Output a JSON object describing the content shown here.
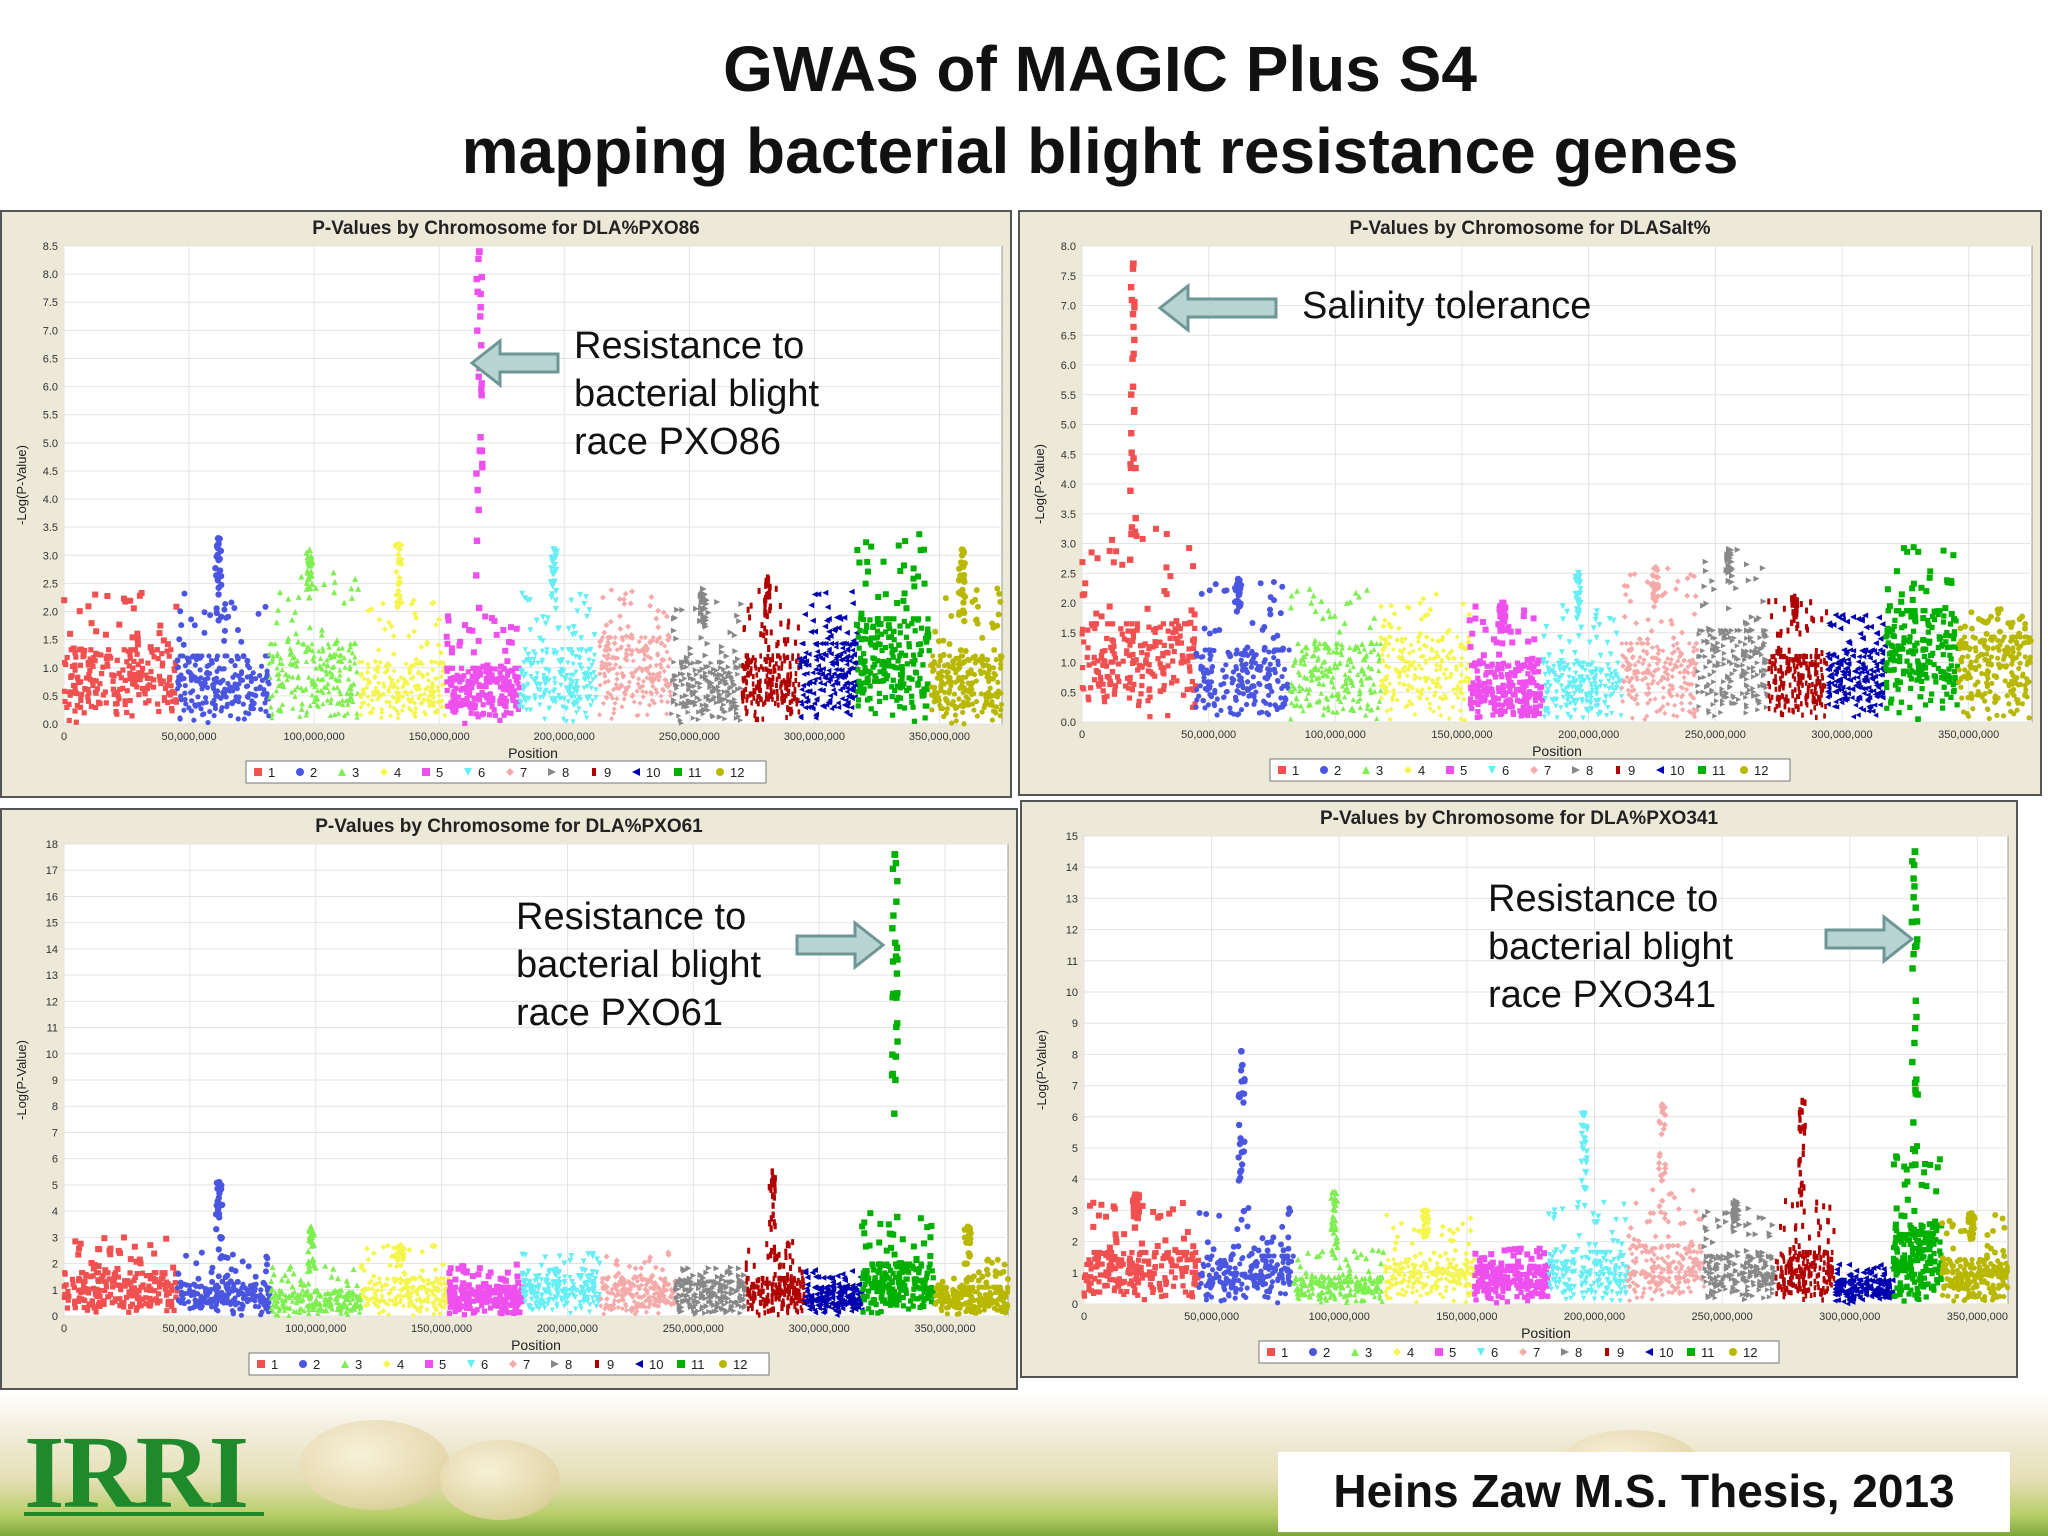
{
  "slide": {
    "title_line1": "GWAS of MAGIC Plus S4",
    "title_line2": "mapping bacterial blight resistance genes",
    "citation": "Heins Zaw M.S. Thesis, 2013",
    "logo": "IRRI"
  },
  "annotations": {
    "pxo86": "Resistance to\nbacterial blight\nrace PXO86",
    "salt": "Salinity tolerance",
    "pxo61": "Resistance to\nbacterial blight\nrace PXO61",
    "pxo341": "Resistance to\nbacterial blight\nrace PXO341"
  },
  "chromosome_legend": {
    "labels": [
      "1",
      "2",
      "3",
      "4",
      "5",
      "6",
      "7",
      "8",
      "9",
      "10",
      "11",
      "12"
    ],
    "colors": [
      "#f05050",
      "#4a55e0",
      "#7fee50",
      "#f5f550",
      "#ee50ee",
      "#66eef5",
      "#f5aaaa",
      "#888888",
      "#b00000",
      "#0000b0",
      "#00b000",
      "#b8b800"
    ],
    "markers": [
      "square",
      "circle",
      "triangle-up",
      "diamond",
      "square",
      "triangle-down",
      "diamond",
      "triangle-right",
      "rect",
      "triangle-left",
      "square",
      "circle"
    ]
  },
  "chart_data": [
    {
      "type": "scatter",
      "title": "P-Values by Chromosome for DLA%PXO86",
      "xlabel": "Position",
      "ylabel": "-Log(P-Value)",
      "xlim": [
        0,
        375000000
      ],
      "ylim": [
        0,
        8.5
      ],
      "yticks": [
        "0.0",
        "0.5",
        "1.0",
        "1.5",
        "2.0",
        "2.5",
        "3.0",
        "3.5",
        "4.0",
        "4.5",
        "5.0",
        "5.5",
        "6.0",
        "6.5",
        "7.0",
        "7.5",
        "8.0",
        "8.5"
      ],
      "xticks": [
        "0",
        "50,000,000",
        "100,000,000",
        "150,000,000",
        "200,000,000",
        "250,000,000",
        "300,000,000",
        "350,000,000"
      ],
      "grid": true,
      "legend": "bottom",
      "chromosomes": [
        {
          "name": "1",
          "start": 0,
          "end": 45000000,
          "base": 1.2,
          "peak": 2.4
        },
        {
          "name": "2",
          "start": 45000000,
          "end": 82000000,
          "base": 1.1,
          "peak": 3.3
        },
        {
          "name": "3",
          "start": 82000000,
          "end": 118000000,
          "base": 1.3,
          "peak": 3.1
        },
        {
          "name": "4",
          "start": 118000000,
          "end": 153000000,
          "base": 1.0,
          "peak": 3.2
        },
        {
          "name": "5",
          "start": 153000000,
          "end": 182000000,
          "base": 0.9,
          "peak": 8.4
        },
        {
          "name": "6",
          "start": 182000000,
          "end": 213000000,
          "base": 1.2,
          "peak": 3.1
        },
        {
          "name": "7",
          "start": 213000000,
          "end": 243000000,
          "base": 1.4,
          "peak": 2.5
        },
        {
          "name": "8",
          "start": 243000000,
          "end": 271000000,
          "base": 1.0,
          "peak": 2.4
        },
        {
          "name": "9",
          "start": 271000000,
          "end": 294000000,
          "base": 1.1,
          "peak": 2.6
        },
        {
          "name": "10",
          "start": 294000000,
          "end": 317000000,
          "base": 1.3,
          "peak": 2.4
        },
        {
          "name": "11",
          "start": 317000000,
          "end": 346000000,
          "base": 1.7,
          "peak": 3.4
        },
        {
          "name": "12",
          "start": 346000000,
          "end": 375000000,
          "base": 1.1,
          "peak": 3.1
        }
      ]
    },
    {
      "type": "scatter",
      "title": "P-Values by Chromosome for DLASalt%",
      "xlabel": "Position",
      "ylabel": "-Log(P-Value)",
      "xlim": [
        0,
        375000000
      ],
      "ylim": [
        0,
        8.0
      ],
      "yticks": [
        "0.0",
        "0.5",
        "1.0",
        "1.5",
        "2.0",
        "2.5",
        "3.0",
        "3.5",
        "4.0",
        "4.5",
        "5.0",
        "5.5",
        "6.0",
        "6.5",
        "7.0",
        "7.5",
        "8.0"
      ],
      "xticks": [
        "0",
        "50,000,000",
        "100,000,000",
        "150,000,000",
        "200,000,000",
        "250,000,000",
        "300,000,000",
        "350,000,000"
      ],
      "grid": true,
      "legend": "bottom",
      "chromosomes": [
        {
          "name": "1",
          "start": 0,
          "end": 45000000,
          "base": 1.5,
          "peak": 7.7
        },
        {
          "name": "2",
          "start": 45000000,
          "end": 82000000,
          "base": 1.1,
          "peak": 2.4
        },
        {
          "name": "3",
          "start": 82000000,
          "end": 118000000,
          "base": 1.2,
          "peak": 2.3
        },
        {
          "name": "4",
          "start": 118000000,
          "end": 153000000,
          "base": 1.3,
          "peak": 2.2
        },
        {
          "name": "5",
          "start": 153000000,
          "end": 182000000,
          "base": 0.9,
          "peak": 2.0
        },
        {
          "name": "6",
          "start": 182000000,
          "end": 213000000,
          "base": 0.9,
          "peak": 2.5
        },
        {
          "name": "7",
          "start": 213000000,
          "end": 243000000,
          "base": 1.2,
          "peak": 2.6
        },
        {
          "name": "8",
          "start": 243000000,
          "end": 271000000,
          "base": 1.4,
          "peak": 2.9
        },
        {
          "name": "9",
          "start": 271000000,
          "end": 294000000,
          "base": 1.0,
          "peak": 2.1
        },
        {
          "name": "10",
          "start": 294000000,
          "end": 317000000,
          "base": 1.1,
          "peak": 1.8
        },
        {
          "name": "11",
          "start": 317000000,
          "end": 346000000,
          "base": 1.7,
          "peak": 3.0
        },
        {
          "name": "12",
          "start": 346000000,
          "end": 375000000,
          "base": 1.3,
          "peak": 1.9
        }
      ]
    },
    {
      "type": "scatter",
      "title": "P-Values by Chromosome for DLA%PXO61",
      "xlabel": "Position",
      "ylabel": "-Log(P-Value)",
      "xlim": [
        0,
        375000000
      ],
      "ylim": [
        0,
        18
      ],
      "yticks": [
        "0",
        "1",
        "2",
        "3",
        "4",
        "5",
        "6",
        "7",
        "8",
        "9",
        "10",
        "11",
        "12",
        "13",
        "14",
        "15",
        "16",
        "17",
        "18"
      ],
      "xticks": [
        "0",
        "50,000,000",
        "100,000,000",
        "150,000,000",
        "200,000,000",
        "250,000,000",
        "300,000,000",
        "350,000,000"
      ],
      "grid": true,
      "legend": "bottom",
      "chromosomes": [
        {
          "name": "1",
          "start": 0,
          "end": 45000000,
          "base": 1.5,
          "peak": 3.0
        },
        {
          "name": "2",
          "start": 45000000,
          "end": 82000000,
          "base": 1.1,
          "peak": 5.1
        },
        {
          "name": "3",
          "start": 82000000,
          "end": 118000000,
          "base": 0.9,
          "peak": 3.4
        },
        {
          "name": "4",
          "start": 118000000,
          "end": 153000000,
          "base": 1.3,
          "peak": 2.7
        },
        {
          "name": "5",
          "start": 153000000,
          "end": 182000000,
          "base": 1.0,
          "peak": 2.0
        },
        {
          "name": "6",
          "start": 182000000,
          "end": 213000000,
          "base": 1.4,
          "peak": 2.4
        },
        {
          "name": "7",
          "start": 213000000,
          "end": 243000000,
          "base": 1.3,
          "peak": 2.5
        },
        {
          "name": "8",
          "start": 243000000,
          "end": 271000000,
          "base": 1.2,
          "peak": 1.9
        },
        {
          "name": "9",
          "start": 271000000,
          "end": 294000000,
          "base": 1.3,
          "peak": 5.5
        },
        {
          "name": "10",
          "start": 294000000,
          "end": 317000000,
          "base": 1.0,
          "peak": 1.8
        },
        {
          "name": "11",
          "start": 317000000,
          "end": 346000000,
          "base": 1.8,
          "peak": 17.6
        },
        {
          "name": "12",
          "start": 346000000,
          "end": 375000000,
          "base": 1.0,
          "peak": 3.4
        }
      ]
    },
    {
      "type": "scatter",
      "title": "P-Values by Chromosome for DLA%PXO341",
      "xlabel": "Position",
      "ylabel": "-Log(P-Value)",
      "xlim": [
        0,
        362000000
      ],
      "ylim": [
        0,
        15
      ],
      "yticks": [
        "0",
        "1",
        "2",
        "3",
        "4",
        "5",
        "6",
        "7",
        "8",
        "9",
        "10",
        "11",
        "12",
        "13",
        "14",
        "15"
      ],
      "xticks": [
        "0",
        "50,000,000",
        "100,000,000",
        "150,000,000",
        "200,000,000",
        "250,000,000",
        "300,000,000",
        "350,000,000"
      ],
      "grid": true,
      "legend": "bottom",
      "chromosomes": [
        {
          "name": "1",
          "start": 0,
          "end": 45000000,
          "base": 1.5,
          "peak": 3.5
        },
        {
          "name": "2",
          "start": 45000000,
          "end": 82000000,
          "base": 1.4,
          "peak": 8.1
        },
        {
          "name": "3",
          "start": 82000000,
          "end": 118000000,
          "base": 0.8,
          "peak": 3.6
        },
        {
          "name": "4",
          "start": 118000000,
          "end": 153000000,
          "base": 1.3,
          "peak": 3.0
        },
        {
          "name": "5",
          "start": 153000000,
          "end": 182000000,
          "base": 1.1,
          "peak": 1.8
        },
        {
          "name": "6",
          "start": 182000000,
          "end": 213000000,
          "base": 1.5,
          "peak": 6.1
        },
        {
          "name": "7",
          "start": 213000000,
          "end": 243000000,
          "base": 1.7,
          "peak": 6.4
        },
        {
          "name": "8",
          "start": 243000000,
          "end": 271000000,
          "base": 1.4,
          "peak": 3.3
        },
        {
          "name": "9",
          "start": 271000000,
          "end": 294000000,
          "base": 1.5,
          "peak": 6.5
        },
        {
          "name": "10",
          "start": 294000000,
          "end": 317000000,
          "base": 0.7,
          "peak": 1.4
        },
        {
          "name": "11",
          "start": 317000000,
          "end": 336000000,
          "base": 2.3,
          "peak": 14.5
        },
        {
          "name": "12",
          "start": 336000000,
          "end": 362000000,
          "base": 1.3,
          "peak": 2.9
        }
      ]
    }
  ]
}
